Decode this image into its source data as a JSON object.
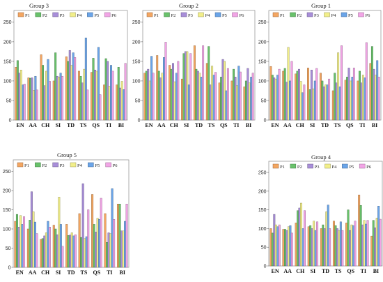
{
  "series_colors": [
    "#F4A661",
    "#69C26B",
    "#A88ED9",
    "#F2EF8A",
    "#6BA5E9",
    "#F2A5E6"
  ],
  "chart_data": [
    {
      "type": "bar",
      "title": "Group 3",
      "categories": [
        "EN",
        "AA",
        "CH",
        "SI",
        "TD",
        "TS",
        "QS",
        "TI",
        "BI"
      ],
      "yticks": [
        0,
        50,
        100,
        150,
        200,
        250
      ],
      "ylim": [
        0,
        280
      ],
      "legend": "top",
      "series": [
        {
          "name": "P1",
          "values": [
            135,
            108,
            167,
            100,
            162,
            125,
            122,
            90,
            90
          ]
        },
        {
          "name": "P2",
          "values": [
            152,
            107,
            140,
            172,
            150,
            112,
            158,
            157,
            135
          ]
        },
        {
          "name": "P3",
          "values": [
            120,
            108,
            88,
            112,
            178,
            95,
            128,
            150,
            82
          ]
        },
        {
          "name": "P4",
          "values": [
            128,
            76,
            125,
            110,
            140,
            130,
            125,
            87,
            99
          ]
        },
        {
          "name": "P5",
          "values": [
            90,
            112,
            155,
            120,
            172,
            210,
            186,
            140,
            78
          ]
        },
        {
          "name": "P6",
          "values": [
            92,
            77,
            99,
            112,
            160,
            77,
            65,
            125,
            145
          ]
        }
      ]
    },
    {
      "type": "bar",
      "title": "Group 2",
      "categories": [
        "EN",
        "AA",
        "CH",
        "SI",
        "TD",
        "TS",
        "QS",
        "TI",
        "BI"
      ],
      "yticks": [
        0,
        50,
        100,
        150,
        200,
        250
      ],
      "ylim": [
        0,
        280
      ],
      "legend": "top",
      "series": [
        {
          "name": "P1",
          "values": [
            120,
            165,
            140,
            105,
            190,
            145,
            95,
            100,
            85
          ]
        },
        {
          "name": "P2",
          "values": [
            125,
            125,
            130,
            170,
            130,
            188,
            110,
            130,
            100
          ]
        },
        {
          "name": "P3",
          "values": [
            130,
            108,
            145,
            175,
            125,
            90,
            155,
            110,
            132
          ]
        },
        {
          "name": "P4",
          "values": [
            100,
            120,
            98,
            175,
            120,
            138,
            150,
            88,
            95
          ]
        },
        {
          "name": "P5",
          "values": [
            163,
            160,
            120,
            90,
            110,
            115,
            75,
            138,
            110
          ]
        },
        {
          "name": "P6",
          "values": [
            120,
            199,
            150,
            170,
            190,
            122,
            132,
            123,
            120
          ]
        }
      ]
    },
    {
      "type": "bar",
      "title": "Group 1",
      "categories": [
        "EN",
        "AA",
        "CH",
        "SI",
        "TD",
        "TS",
        "QS",
        "TI",
        "BI"
      ],
      "yticks": [
        0,
        50,
        100,
        150,
        200,
        250
      ],
      "ylim": [
        0,
        280
      ],
      "legend": "top",
      "series": [
        {
          "name": "P1",
          "values": [
            137,
            125,
            118,
            133,
            120,
            75,
            102,
            100,
            145
          ]
        },
        {
          "name": "P2",
          "values": [
            115,
            132,
            125,
            78,
            100,
            120,
            110,
            125,
            188
          ]
        },
        {
          "name": "P3",
          "values": [
            108,
            97,
            130,
            128,
            85,
            95,
            133,
            95,
            130
          ]
        },
        {
          "name": "P4",
          "values": [
            105,
            186,
            99,
            80,
            90,
            172,
            100,
            115,
            115
          ]
        },
        {
          "name": "P5",
          "values": [
            115,
            100,
            70,
            100,
            90,
            85,
            110,
            108,
            152
          ]
        },
        {
          "name": "P6",
          "values": [
            130,
            150,
            90,
            132,
            105,
            190,
            133,
            198,
            110
          ]
        }
      ]
    },
    {
      "type": "bar",
      "title": "Group 5",
      "categories": [
        "EN",
        "AA",
        "CH",
        "SI",
        "TD",
        "TS",
        "QS",
        "TI",
        "BI"
      ],
      "yticks": [
        0,
        50,
        100,
        150,
        200,
        250
      ],
      "ylim": [
        0,
        280
      ],
      "legend": "top",
      "series": [
        {
          "name": "P1",
          "values": [
            120,
            100,
            73,
            110,
            112,
            140,
            190,
            140,
            165
          ]
        },
        {
          "name": "P2",
          "values": [
            138,
            123,
            75,
            100,
            83,
            78,
            112,
            65,
            165
          ]
        },
        {
          "name": "P3",
          "values": [
            105,
            197,
            82,
            85,
            84,
            218,
            92,
            90,
            95
          ]
        },
        {
          "name": "P4",
          "values": [
            135,
            145,
            90,
            183,
            90,
            75,
            128,
            88,
            95
          ]
        },
        {
          "name": "P5",
          "values": [
            112,
            118,
            120,
            112,
            82,
            80,
            125,
            205,
            120
          ]
        },
        {
          "name": "P6",
          "values": [
            132,
            88,
            105,
            55,
            85,
            150,
            180,
            125,
            165
          ]
        }
      ]
    },
    {
      "type": "bar",
      "title": "Group 4",
      "categories": [
        "EN",
        "AA",
        "CH",
        "SI",
        "TD",
        "TS",
        "QS",
        "TI",
        "BI"
      ],
      "yticks": [
        0,
        50,
        100,
        150,
        200,
        250
      ],
      "ylim": [
        0,
        280
      ],
      "legend": "top",
      "series": [
        {
          "name": "P1",
          "values": [
            100,
            98,
            115,
            105,
            100,
            120,
            115,
            190,
            80
          ]
        },
        {
          "name": "P2",
          "values": [
            88,
            98,
            148,
            108,
            110,
            108,
            150,
            162,
            122
          ]
        },
        {
          "name": "P3",
          "values": [
            138,
            95,
            155,
            100,
            100,
            100,
            95,
            110,
            102
          ]
        },
        {
          "name": "P4",
          "values": [
            110,
            105,
            168,
            120,
            145,
            95,
            110,
            122,
            128
          ]
        },
        {
          "name": "P5",
          "values": [
            105,
            108,
            100,
            95,
            163,
            118,
            108,
            112,
            160
          ]
        },
        {
          "name": "P6",
          "values": [
            110,
            88,
            148,
            118,
            100,
            95,
            120,
            122,
            125
          ]
        }
      ]
    }
  ]
}
